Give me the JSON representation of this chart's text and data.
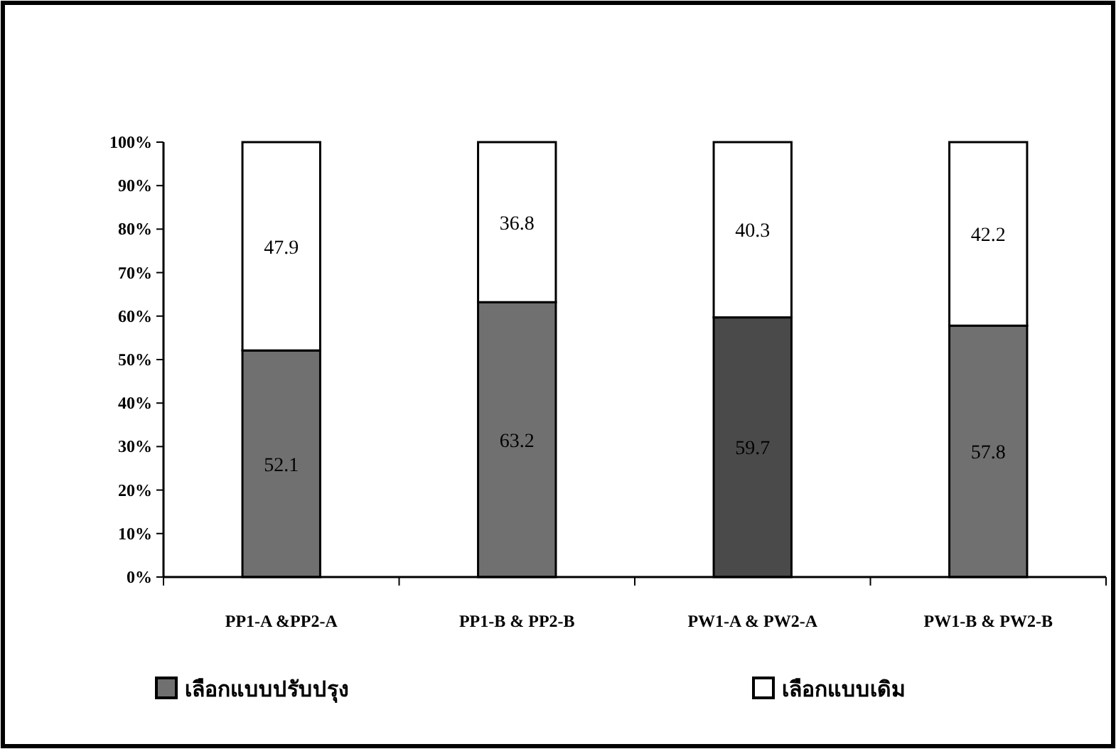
{
  "chart_data": {
    "type": "bar",
    "stacked": true,
    "data_labels": true,
    "legend": "bottom",
    "grid": false,
    "categories": [
      "PP1-A &PP2-A",
      "PP1-B & PP2-B",
      "PW1-A & PW2-A",
      "PW1-B & PW2-B"
    ],
    "series": [
      {
        "name": "เลือกแบบปรับปรุง",
        "color": "#707070",
        "colors": [
          "#707070",
          "#707070",
          "#4a4a4a",
          "#707070"
        ],
        "values": [
          52.1,
          63.2,
          59.7,
          57.8
        ]
      },
      {
        "name": "เลือกแบบเดิม",
        "color": "#ffffff",
        "values": [
          47.9,
          36.8,
          40.3,
          42.2
        ]
      }
    ],
    "ylim": [
      0,
      100
    ],
    "yticks": [
      {
        "value": 0,
        "label": "0%"
      },
      {
        "value": 10,
        "label": "10%"
      },
      {
        "value": 20,
        "label": "20%"
      },
      {
        "value": 30,
        "label": "30%"
      },
      {
        "value": 40,
        "label": "40%"
      },
      {
        "value": 50,
        "label": "50%"
      },
      {
        "value": 60,
        "label": "60%"
      },
      {
        "value": 70,
        "label": "70%"
      },
      {
        "value": 80,
        "label": "80%"
      },
      {
        "value": 90,
        "label": "90%"
      },
      {
        "value": 100,
        "label": "100%"
      }
    ]
  }
}
